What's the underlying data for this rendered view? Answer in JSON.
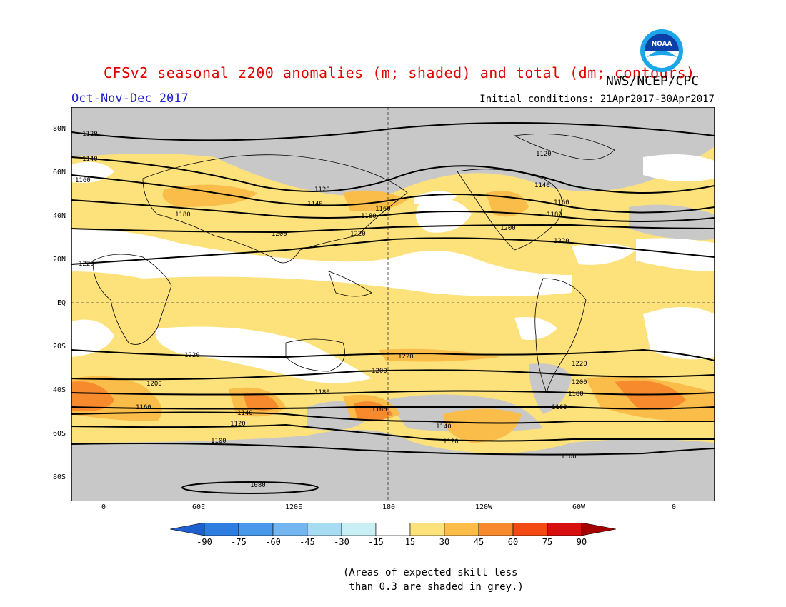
{
  "header": {
    "title": "CFSv2 seasonal z200 anomalies (m; shaded) and total (dm; contours)",
    "agency": "NWS/NCEP/CPC",
    "season": "Oct-Nov-Dec 2017",
    "initial_conditions": "Initial conditions: 21Apr2017-30Apr2017",
    "logo_text": "NOAA"
  },
  "map": {
    "lat_labels": [
      "80N",
      "60N",
      "40N",
      "20N",
      "EQ",
      "20S",
      "40S",
      "60S",
      "80S"
    ],
    "lon_labels": [
      "0",
      "60E",
      "120E",
      "180",
      "120W",
      "60W",
      "0"
    ],
    "contour_labels": {
      "1120a": "1120",
      "1140a": "1140",
      "1160a": "1160",
      "1180a": "1180",
      "1200a": "1200",
      "1220a": "1220",
      "1120b": "1120",
      "1140b": "1140",
      "1160b": "1160",
      "1180b": "1180",
      "1220b": "1220",
      "1120c": "1120",
      "1140c": "1140",
      "1160c": "1160",
      "1180c": "1180",
      "1200c": "1200",
      "1220c": "1220",
      "s1220a": "1220",
      "s1220b": "1220",
      "s1220c": "1220",
      "s1200a": "1200",
      "s1200b": "1200",
      "s1200c": "1200",
      "s1180a": "1180",
      "s1180b": "1180",
      "s1160a": "1160",
      "s1160b": "1160",
      "s1160c": "1160",
      "s1140a": "1140",
      "s1140b": "1140",
      "s1120a": "1120",
      "s1120b": "1120",
      "s1100a": "1100",
      "s1100b": "1100",
      "s1080": "1080"
    }
  },
  "colorbar": {
    "labels": [
      "-90",
      "-75",
      "-60",
      "-45",
      "-30",
      "-15",
      "15",
      "30",
      "45",
      "60",
      "75",
      "90"
    ],
    "colors": {
      "neg_extreme": "#1e5fd0",
      "neg75": "#2e7de0",
      "neg60": "#4a98ea",
      "neg45": "#74b6f0",
      "neg30": "#a8dcf2",
      "neg15": "#c8f0f4",
      "neutral": "#ffffff",
      "pos15": "#fde17a",
      "pos30": "#fbbd4a",
      "pos45": "#f88a2e",
      "pos60": "#f24a12",
      "pos75": "#d80f0f",
      "pos_extreme": "#a40000",
      "grey_skill": "#c8c8c8"
    }
  },
  "note": "(Areas of expected skill less\n than 0.3 are shaded in grey.)"
}
